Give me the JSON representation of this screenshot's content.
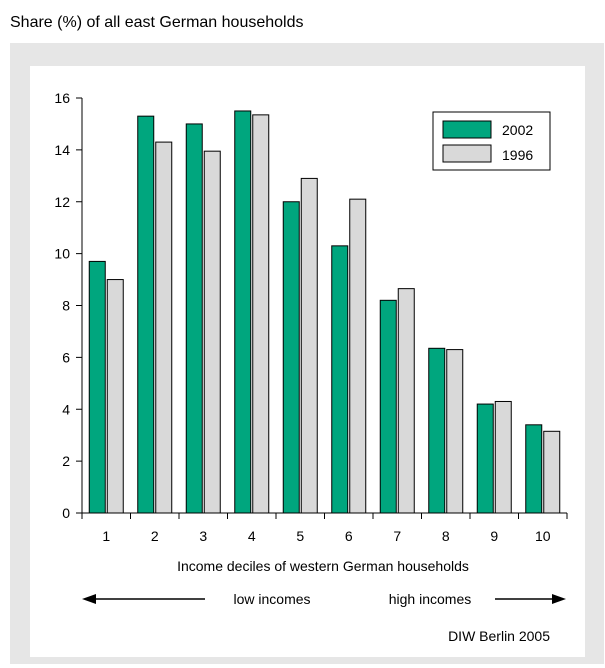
{
  "header": {
    "title": "Share (%) of all east German households"
  },
  "footer": {
    "source": "DIW Berlin 2005"
  },
  "annotation": {
    "left_label": "low incomes",
    "right_label": "high incomes"
  },
  "colors": {
    "frame": "#e6e6e6",
    "series_2002": "#00a67e",
    "series_1996": "#d9d9d9"
  },
  "chart_data": {
    "type": "bar",
    "xlabel": "Income deciles of western German households",
    "ylabel": "",
    "ylim": [
      0,
      16
    ],
    "yticks": [
      0,
      2,
      4,
      6,
      8,
      10,
      12,
      14,
      16
    ],
    "categories": [
      "1",
      "2",
      "3",
      "4",
      "5",
      "6",
      "7",
      "8",
      "9",
      "10"
    ],
    "series": [
      {
        "name": "2002",
        "color": "#00a67e",
        "values": [
          9.7,
          15.3,
          15.0,
          15.5,
          12.0,
          10.3,
          8.2,
          6.35,
          4.2,
          3.4
        ]
      },
      {
        "name": "1996",
        "color": "#d9d9d9",
        "values": [
          9.0,
          14.3,
          13.95,
          15.35,
          12.9,
          12.1,
          8.65,
          6.3,
          4.3,
          3.15
        ]
      }
    ],
    "grid": false,
    "legend": "top-right"
  }
}
